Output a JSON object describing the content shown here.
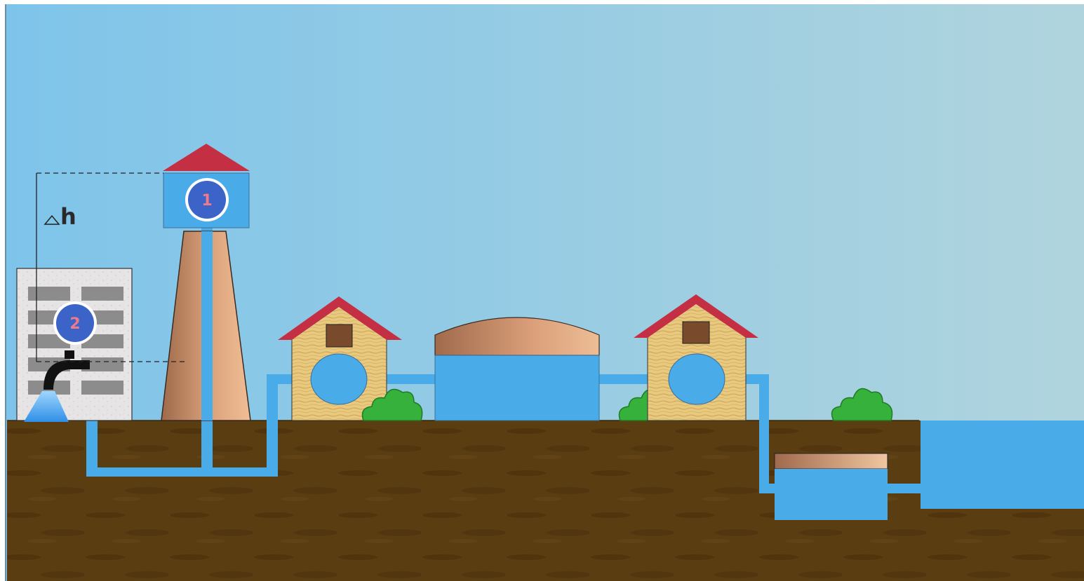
{
  "labels": {
    "delta_h": "h",
    "point_1": "1",
    "point_2": "2"
  },
  "colors": {
    "sky_left": "#7ec4ea",
    "sky_right": "#b0d4dd",
    "ground": "#5b3d12",
    "ground_dark": "#4a2f0c",
    "water": "#4aabe9",
    "roof_red": "#c42f43",
    "tower_light": "#e9b48c",
    "tower_dark": "#9d6a4b",
    "wood": "#e8c97d",
    "wood_grain": "#c9a25a",
    "window_brown": "#7a4a2c",
    "bush_green": "#36b23c",
    "bush_dark": "#1f7a25",
    "badge_blue": "#3b63c8",
    "badge_text": "#f07a8a",
    "building_gray": "#e6e4e4",
    "building_window": "#8c8c8c",
    "faucet_black": "#111111"
  }
}
